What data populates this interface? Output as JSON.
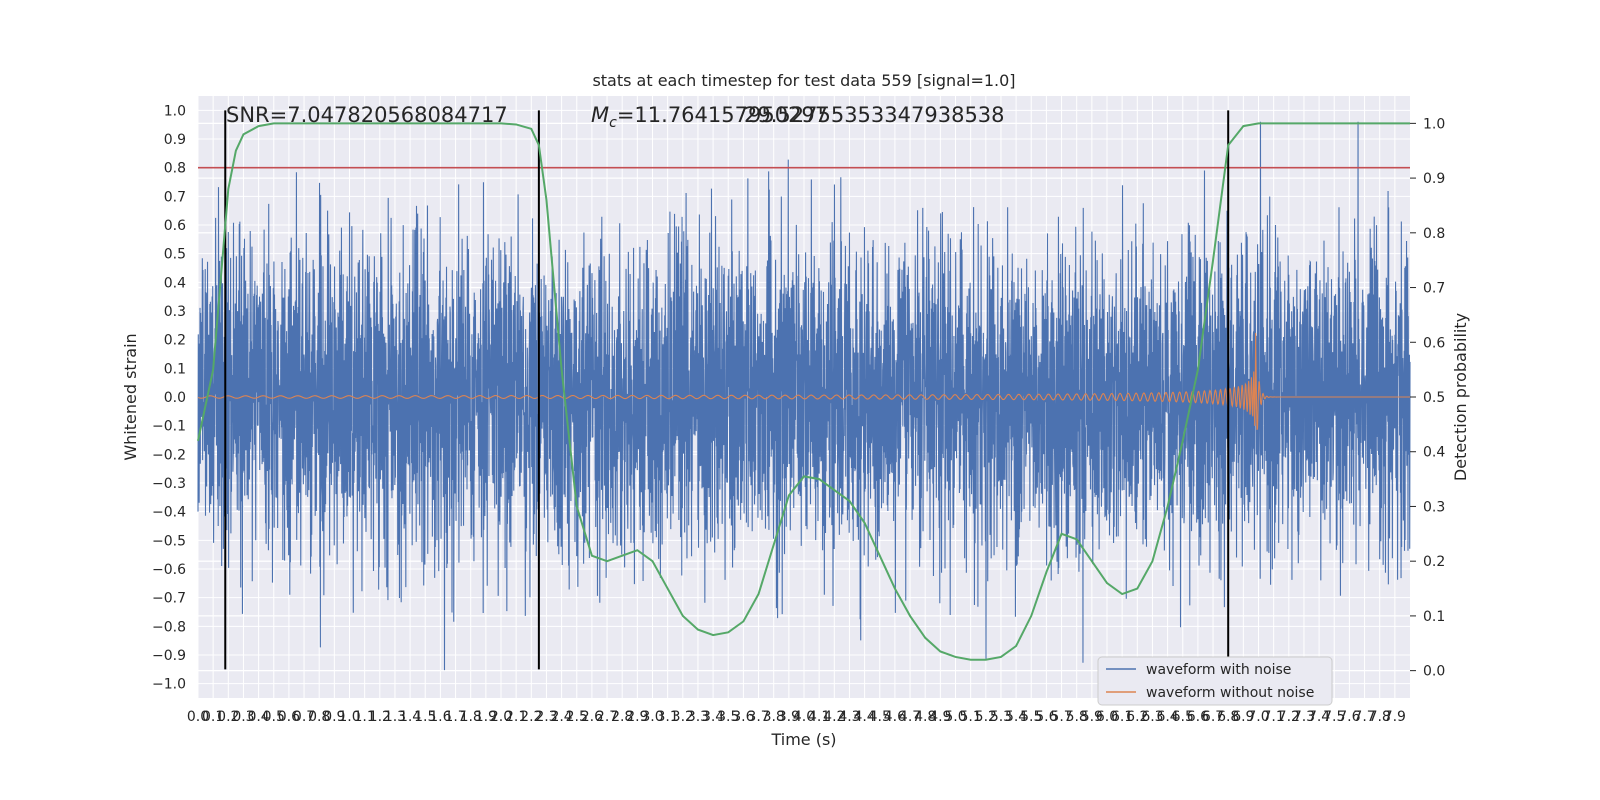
{
  "chart_data": {
    "type": "line",
    "title": "stats at each timestep for test data 559 [signal=1.0]",
    "xlabel": "Time (s)",
    "ylabel": "Whitened strain",
    "ylabel_right": "Detection probability",
    "xlim": [
      0.0,
      8.0
    ],
    "ylim": [
      -1.05,
      1.05
    ],
    "ylim_right": [
      -0.05,
      1.05
    ],
    "x_ticks": [
      "0.0",
      "0.1",
      "0.2",
      "0.3",
      "0.4",
      "0.5",
      "0.6",
      "0.7",
      "0.8",
      "0.9",
      "1.0",
      "1.1",
      "1.2",
      "1.3",
      "1.4",
      "1.5",
      "1.6",
      "1.7",
      "1.8",
      "1.9",
      "2.0",
      "2.1",
      "2.2",
      "2.3",
      "2.4",
      "2.5",
      "2.6",
      "2.7",
      "2.8",
      "2.9",
      "3.0",
      "3.1",
      "3.2",
      "3.3",
      "3.4",
      "3.5",
      "3.6",
      "3.7",
      "3.8",
      "3.9",
      "4.0",
      "4.1",
      "4.2",
      "4.3",
      "4.4",
      "4.5",
      "4.6",
      "4.7",
      "4.8",
      "4.9",
      "5.0",
      "5.1",
      "5.2",
      "5.3",
      "5.4",
      "5.5",
      "5.6",
      "5.7",
      "5.8",
      "5.9",
      "6.0",
      "6.1",
      "6.2",
      "6.3",
      "6.4",
      "6.5",
      "6.6",
      "6.7",
      "6.8",
      "6.9",
      "7.0",
      "7.1",
      "7.2",
      "7.3",
      "7.4",
      "7.5",
      "7.6",
      "7.7",
      "7.8",
      "7.9"
    ],
    "y_ticks": [
      "1.0",
      "0.9",
      "0.8",
      "0.7",
      "0.6",
      "0.5",
      "0.4",
      "0.3",
      "0.2",
      "0.1",
      "0.0",
      "−0.1",
      "−0.2",
      "−0.3",
      "−0.4",
      "−0.5",
      "−0.6",
      "−0.7",
      "−0.8",
      "−0.9",
      "−1.0"
    ],
    "y_ticks_right": [
      "1.0",
      "0.9",
      "0.8",
      "0.7",
      "0.6",
      "0.5",
      "0.4",
      "0.3",
      "0.2",
      "0.1",
      "0.0"
    ],
    "threshold_y": 0.8,
    "vertical_markers_x": [
      0.18,
      2.25,
      6.8
    ],
    "snr_text": "SNR=7.047820568084717",
    "mc_text": "M",
    "mc_subscript": "c",
    "mc_value_text": "=11.764157950297",
    "overlap_text": "29.52755353347938538",
    "detection_probability": {
      "x": [
        0.0,
        0.1,
        0.2,
        0.25,
        0.3,
        0.4,
        0.5,
        0.6,
        0.8,
        1.0,
        1.5,
        2.0,
        2.1,
        2.2,
        2.25,
        2.3,
        2.4,
        2.5,
        2.6,
        2.7,
        2.8,
        2.9,
        3.0,
        3.1,
        3.2,
        3.3,
        3.4,
        3.5,
        3.6,
        3.7,
        3.8,
        3.9,
        4.0,
        4.1,
        4.2,
        4.3,
        4.4,
        4.5,
        4.6,
        4.7,
        4.8,
        4.9,
        5.0,
        5.1,
        5.2,
        5.3,
        5.4,
        5.5,
        5.6,
        5.7,
        5.8,
        5.9,
        6.0,
        6.1,
        6.2,
        6.3,
        6.4,
        6.5,
        6.6,
        6.7,
        6.8,
        6.9,
        7.0,
        7.1,
        7.2,
        7.5,
        8.0
      ],
      "y": [
        0.42,
        0.55,
        0.88,
        0.95,
        0.98,
        0.995,
        1.0,
        1.0,
        1.0,
        1.0,
        1.0,
        1.0,
        0.998,
        0.99,
        0.96,
        0.86,
        0.55,
        0.3,
        0.21,
        0.2,
        0.21,
        0.22,
        0.2,
        0.15,
        0.1,
        0.075,
        0.065,
        0.07,
        0.09,
        0.14,
        0.23,
        0.32,
        0.355,
        0.35,
        0.33,
        0.31,
        0.27,
        0.21,
        0.15,
        0.1,
        0.06,
        0.035,
        0.025,
        0.02,
        0.02,
        0.025,
        0.045,
        0.1,
        0.18,
        0.25,
        0.24,
        0.2,
        0.16,
        0.14,
        0.15,
        0.2,
        0.3,
        0.42,
        0.55,
        0.75,
        0.96,
        0.995,
        1.0,
        1.0,
        1.0,
        1.0,
        1.0
      ]
    },
    "waveform_with_noise": {
      "name": "waveform with noise",
      "typical_amplitude": 0.55,
      "peak_amplitude": 0.96
    },
    "waveform_without_noise": {
      "name": "waveform without noise",
      "merger_time": 6.98,
      "peak_amplitude": 0.25
    },
    "legend_position": "lower-right",
    "colors": {
      "noise": "#4c72b0",
      "clean": "#dd8452",
      "probability": "#55a868",
      "threshold": "#c44e52",
      "markers": "#000000",
      "axes_bg": "#eaeaf2",
      "grid": "#ffffff"
    }
  }
}
